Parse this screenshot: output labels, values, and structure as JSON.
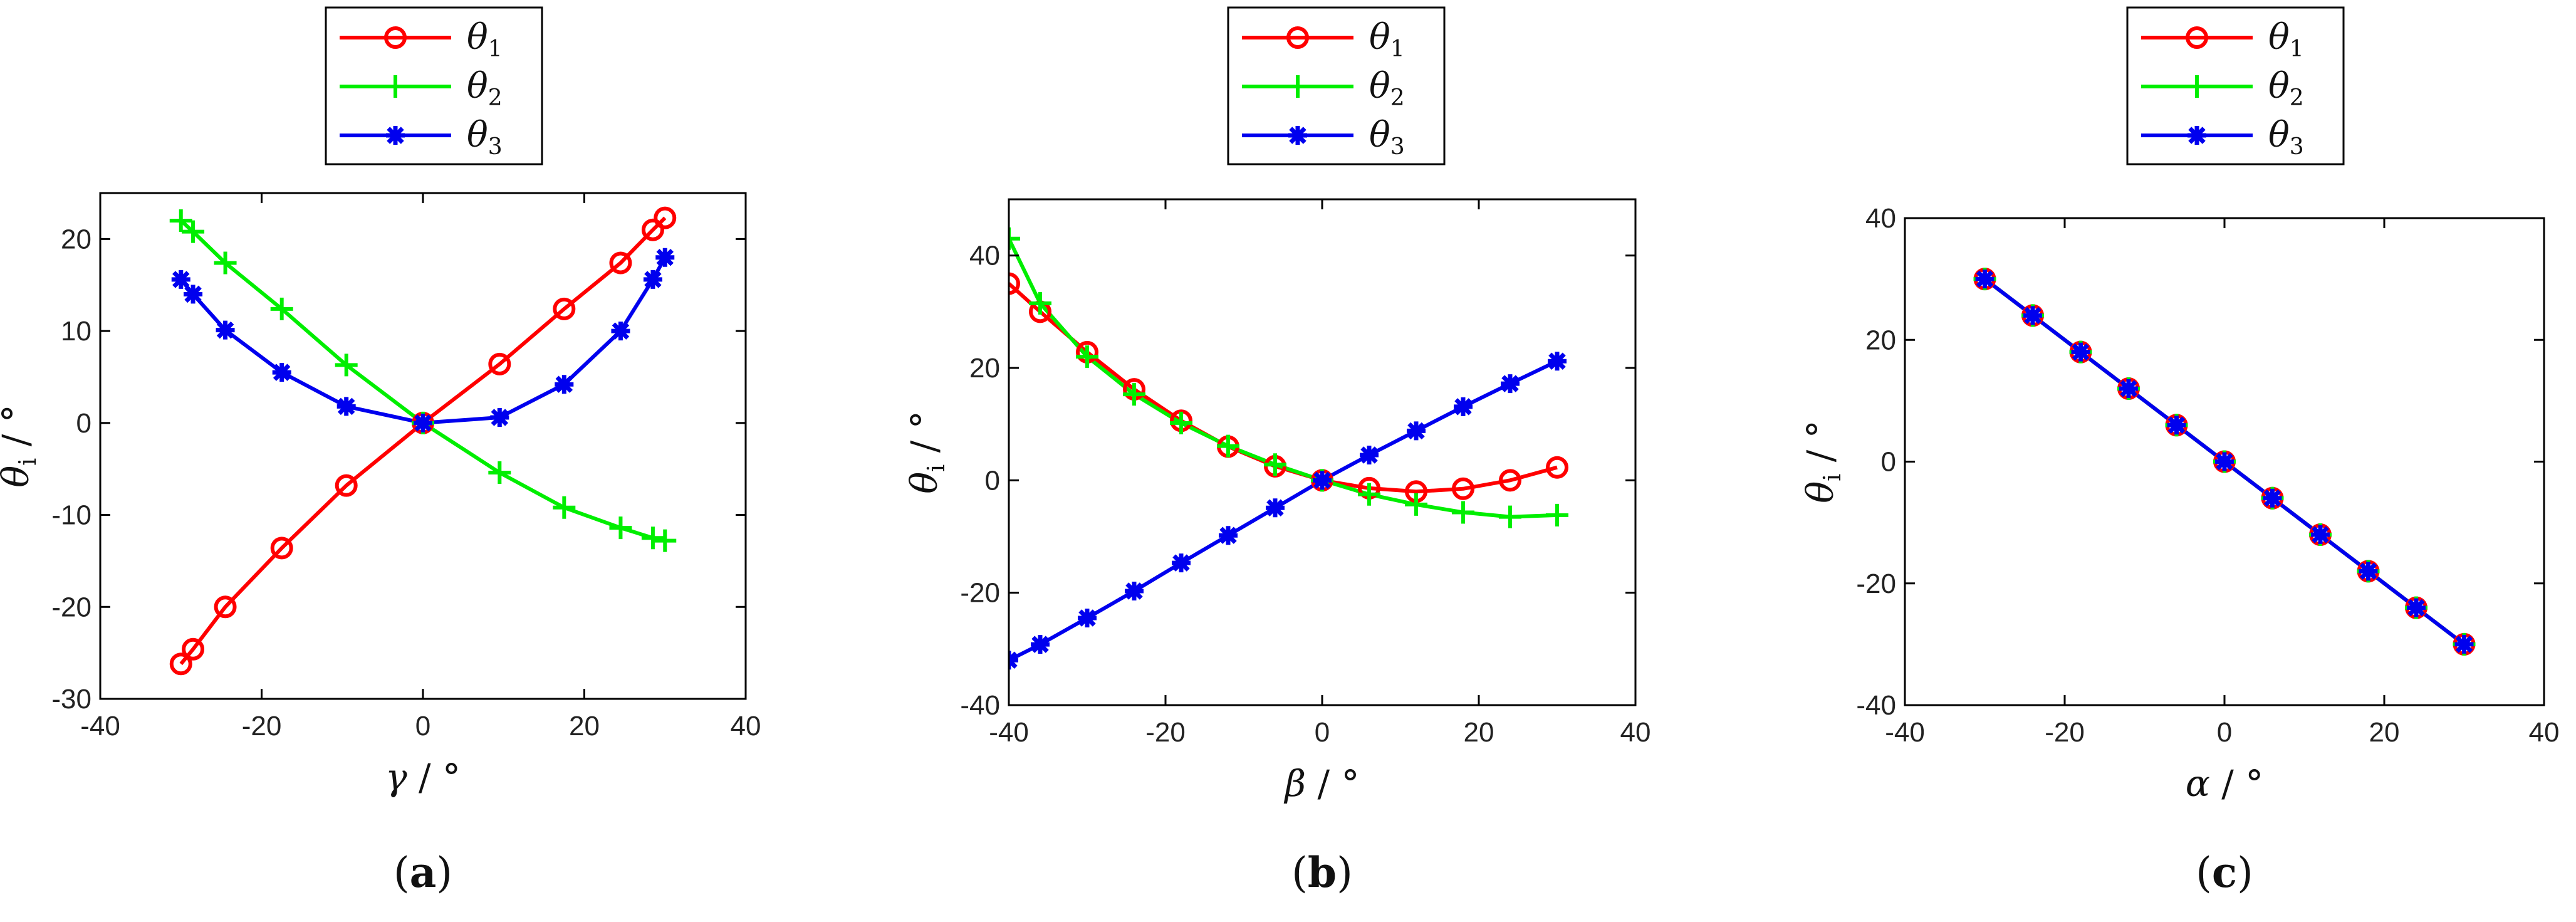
{
  "chart_data": [
    {
      "type": "line",
      "panel_label": "a",
      "xlabel": "γ",
      "unit_text": " / °",
      "ylabel": "θ",
      "ylabel_sub": "i",
      "xlim": [
        -40,
        40
      ],
      "ylim": [
        -30,
        25
      ],
      "xticks": [
        -40,
        -20,
        0,
        20,
        40
      ],
      "yticks": [
        -30,
        -20,
        -10,
        0,
        10,
        20
      ],
      "legend": [
        "θ1",
        "θ2",
        "θ3"
      ],
      "series": [
        {
          "name": "θ1",
          "color": "#ff0000",
          "marker": "circle",
          "x": [
            -30,
            -28.5,
            -24.5,
            -17.5,
            -9.5,
            0,
            9.5,
            17.5,
            24.5,
            28.5,
            30
          ],
          "y": [
            -26.2,
            -24.6,
            -20,
            -13.6,
            -6.8,
            0,
            6.4,
            12.4,
            17.4,
            21,
            22.3
          ]
        },
        {
          "name": "θ2",
          "color": "#00ee00",
          "marker": "plus",
          "x": [
            -30,
            -28.5,
            -24.5,
            -17.5,
            -9.5,
            0,
            9.5,
            17.5,
            24.5,
            28.5,
            30
          ],
          "y": [
            22,
            20.8,
            17.4,
            12.4,
            6.3,
            0,
            -5.4,
            -9.2,
            -11.4,
            -12.5,
            -12.8
          ]
        },
        {
          "name": "θ3",
          "color": "#0000ee",
          "marker": "star",
          "x": [
            -30,
            -28.5,
            -24.5,
            -17.5,
            -9.5,
            0,
            9.5,
            17.5,
            24.5,
            28.5,
            30
          ],
          "y": [
            15.6,
            14,
            10.1,
            5.5,
            1.8,
            0,
            0.6,
            4.2,
            10,
            15.6,
            18
          ]
        }
      ]
    },
    {
      "type": "line",
      "panel_label": "b",
      "xlabel": "β",
      "unit_text": " / °",
      "ylabel": "θ",
      "ylabel_sub": "i",
      "xlim": [
        -40,
        40
      ],
      "ylim": [
        -40,
        50
      ],
      "xticks": [
        -40,
        -20,
        0,
        20,
        40
      ],
      "yticks": [
        -40,
        -20,
        0,
        20,
        40
      ],
      "legend": [
        "θ1",
        "θ2",
        "θ3"
      ],
      "series": [
        {
          "name": "θ1",
          "color": "#ff0000",
          "marker": "circle",
          "x": [
            -40,
            -36,
            -30,
            -24,
            -18,
            -12,
            -6,
            0,
            6,
            12,
            18,
            24,
            30
          ],
          "y": [
            35,
            30,
            22.8,
            16.2,
            10.6,
            6,
            2.5,
            0,
            -1.4,
            -2,
            -1.5,
            0,
            2.3
          ]
        },
        {
          "name": "θ2",
          "color": "#00ee00",
          "marker": "plus",
          "x": [
            -40,
            -36,
            -30,
            -24,
            -18,
            -12,
            -6,
            0,
            6,
            12,
            18,
            24,
            30
          ],
          "y": [
            43,
            31.5,
            22,
            15.3,
            10.2,
            6.1,
            2.8,
            0,
            -2.5,
            -4.3,
            -5.7,
            -6.5,
            -6.2
          ]
        },
        {
          "name": "θ3",
          "color": "#0000ee",
          "marker": "star",
          "x": [
            -40,
            -36,
            -30,
            -24,
            -18,
            -12,
            -6,
            0,
            6,
            12,
            18,
            24,
            30
          ],
          "y": [
            -32,
            -29.2,
            -24.5,
            -19.7,
            -14.7,
            -9.8,
            -4.9,
            0,
            4.5,
            8.8,
            13.1,
            17.2,
            21.2
          ]
        }
      ]
    },
    {
      "type": "line",
      "panel_label": "c",
      "xlabel": "α",
      "unit_text": " / °",
      "ylabel": "θ",
      "ylabel_sub": "i",
      "xlim": [
        -40,
        40
      ],
      "ylim": [
        -40,
        40
      ],
      "xticks": [
        -40,
        -20,
        0,
        20,
        40
      ],
      "yticks": [
        -40,
        -20,
        0,
        20,
        40
      ],
      "legend": [
        "θ1",
        "θ2",
        "θ3"
      ],
      "series": [
        {
          "name": "θ1",
          "color": "#ff0000",
          "marker": "circle",
          "x": [
            -30,
            -24,
            -18,
            -12,
            -6,
            0,
            6,
            12,
            18,
            24,
            30
          ],
          "y": [
            30,
            24,
            18,
            12,
            6,
            0,
            -6,
            -12,
            -18,
            -24,
            -30
          ]
        },
        {
          "name": "θ2",
          "color": "#00ee00",
          "marker": "plus",
          "x": [
            -30,
            -24,
            -18,
            -12,
            -6,
            0,
            6,
            12,
            18,
            24,
            30
          ],
          "y": [
            30,
            24,
            18,
            12,
            6,
            0,
            -6,
            -12,
            -18,
            -24,
            -30
          ]
        },
        {
          "name": "θ3",
          "color": "#0000ee",
          "marker": "star",
          "x": [
            -30,
            -24,
            -18,
            -12,
            -6,
            0,
            6,
            12,
            18,
            24,
            30
          ],
          "y": [
            30,
            24,
            18,
            12,
            6,
            0,
            -6,
            -12,
            -18,
            -24,
            -30
          ]
        }
      ]
    }
  ]
}
